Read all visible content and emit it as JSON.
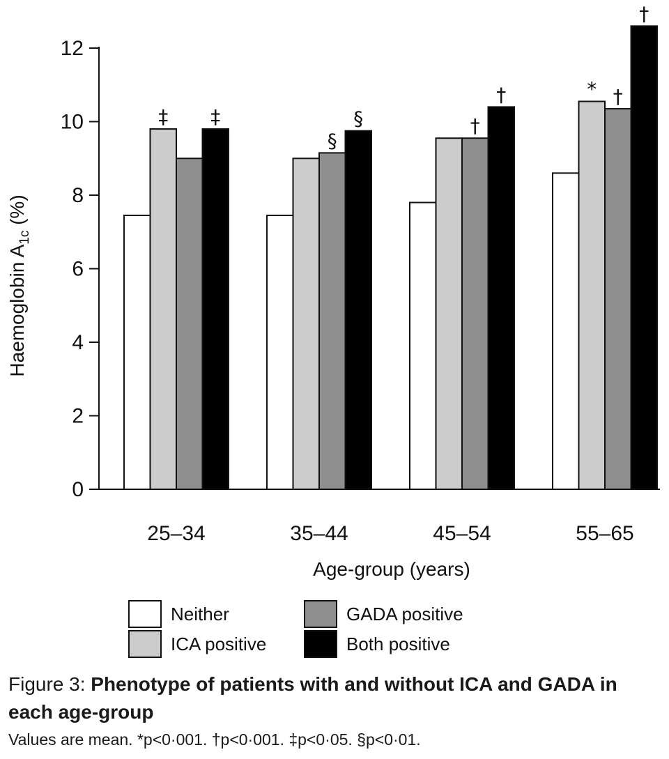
{
  "chart_data": {
    "type": "bar",
    "ylabel_text": "Haemoglobin A",
    "ylabel_sub": "1c",
    "ylabel_suffix": " (%)",
    "xlabel": "Age-group (years)",
    "ylim": [
      0,
      12
    ],
    "yticks": [
      0,
      2,
      4,
      6,
      8,
      10,
      12
    ],
    "categories": [
      "25–34",
      "35–44",
      "45–54",
      "55–65"
    ],
    "grid": false,
    "legend_position": "bottom",
    "series": [
      {
        "name": "Neither",
        "color": "#ffffff",
        "values": [
          7.45,
          7.45,
          7.8,
          8.6
        ],
        "marks": [
          "",
          "",
          "",
          ""
        ]
      },
      {
        "name": "ICA positive",
        "color": "#cccccc",
        "values": [
          9.8,
          9.0,
          9.55,
          10.55
        ],
        "marks": [
          "‡",
          "",
          "",
          "*"
        ]
      },
      {
        "name": "GADA positive",
        "color": "#8f8f8f",
        "values": [
          9.0,
          9.15,
          9.55,
          10.35
        ],
        "marks": [
          "",
          "§",
          "†",
          "†"
        ]
      },
      {
        "name": "Both positive",
        "color": "#000000",
        "values": [
          9.8,
          9.75,
          10.4,
          12.6
        ],
        "marks": [
          "‡",
          "§",
          "†",
          "†"
        ]
      }
    ]
  },
  "caption": {
    "lead": "Figure 3: ",
    "title": "Phenotype of patients with and without ICA and GADA in each age-group",
    "note": "Values are mean. *p<0·001. †p<0·001. ‡p<0·05. §p<0·01."
  }
}
